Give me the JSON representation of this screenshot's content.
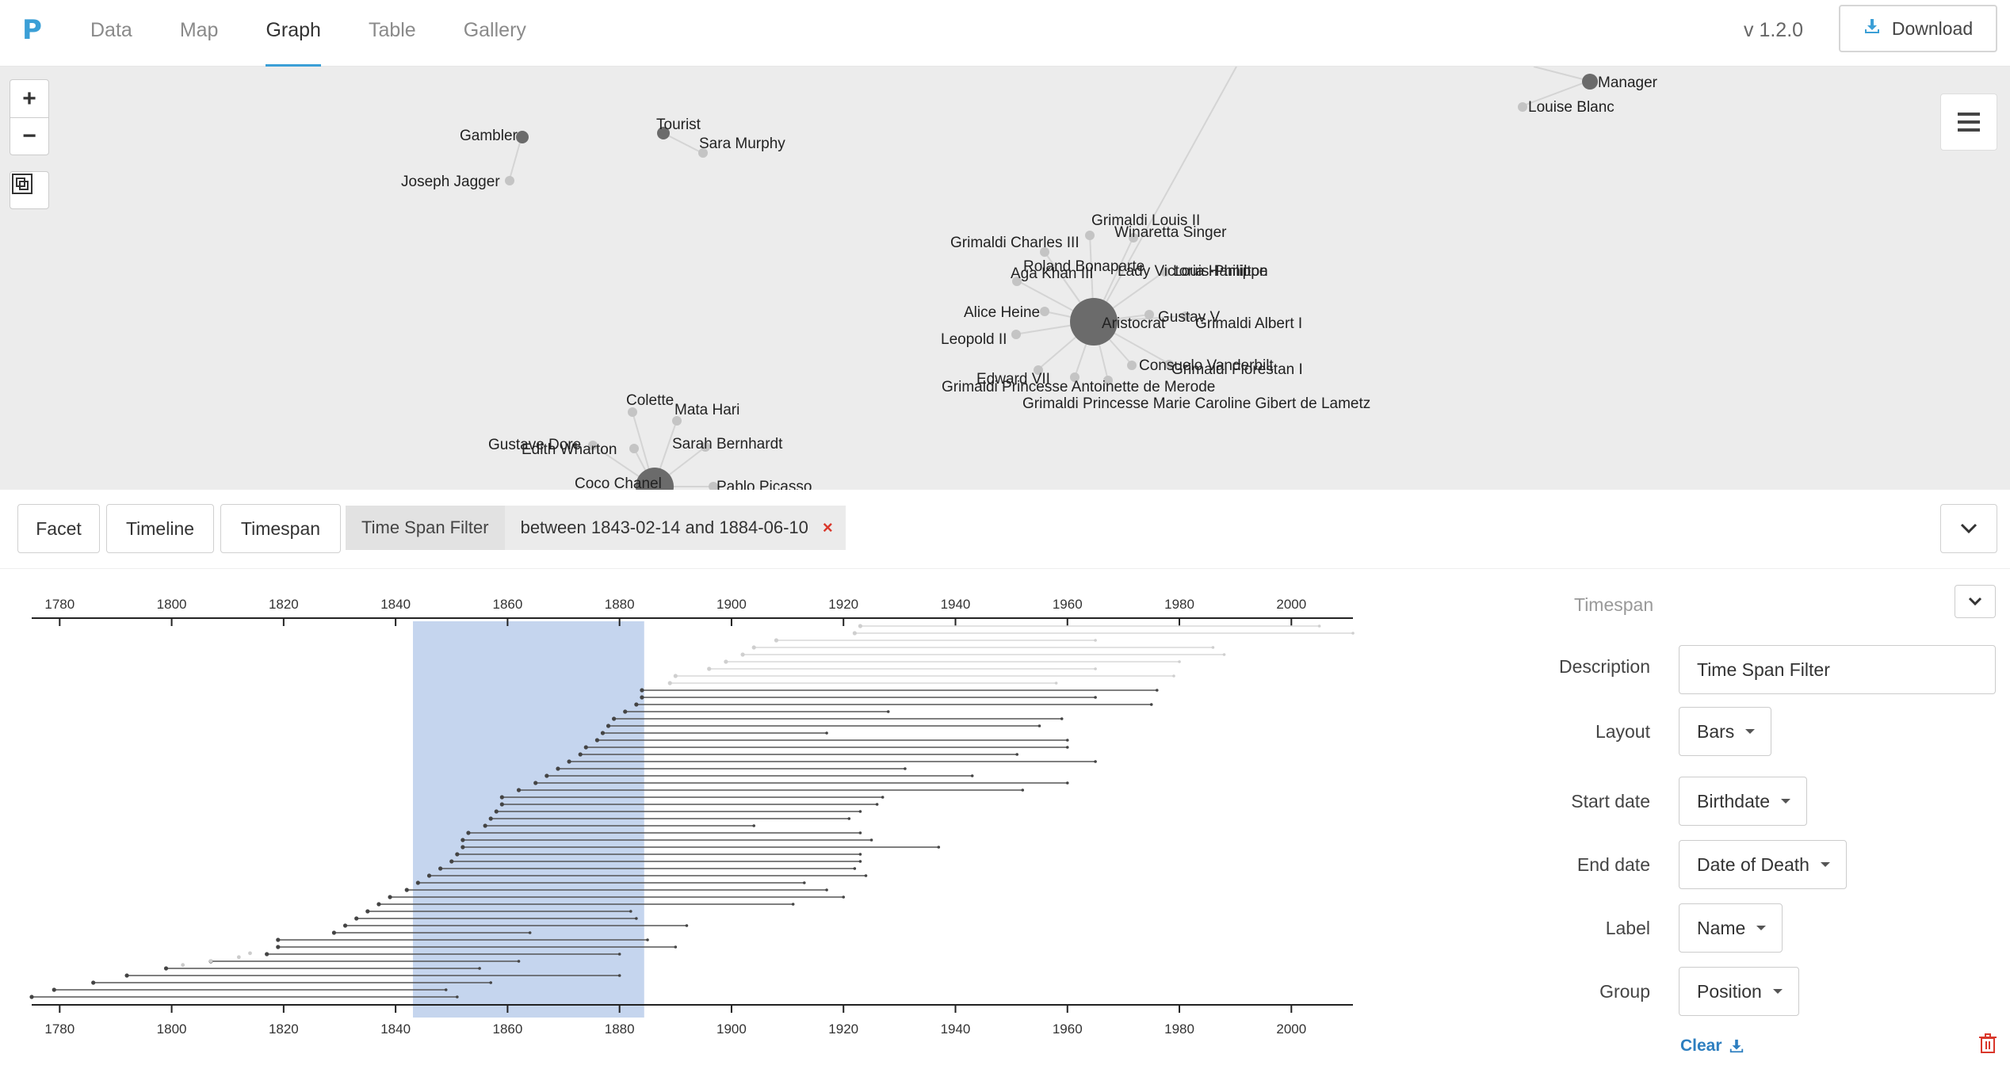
{
  "nav": {
    "logo": "P",
    "items": [
      {
        "label": "Data",
        "active": false
      },
      {
        "label": "Map",
        "active": false
      },
      {
        "label": "Graph",
        "active": true
      },
      {
        "label": "Table",
        "active": false
      },
      {
        "label": "Gallery",
        "active": false
      }
    ],
    "version": "v 1.2.0",
    "download_label": "Download"
  },
  "graph": {
    "zoom_in": "+",
    "zoom_out": "−",
    "category_nodes": [
      "Manager",
      "Tourist",
      "Gambler",
      "Aristocrat"
    ],
    "labels": {
      "manager": "Manager",
      "louise_blanc": "Louise Blanc",
      "tourist": "Tourist",
      "sara_murphy": "Sara Murphy",
      "gambler": "Gambler",
      "joseph_jagger": "Joseph Jagger",
      "grimaldi_louis_ii": "Grimaldi Louis II",
      "winaretta_singer": "Winaretta Singer",
      "grimaldi_charles_iii": "Grimaldi Charles III",
      "roland_bonaparte": "Roland Bonaparte",
      "aga_khan_iii": "Aga Khan III",
      "lady_victoria_hamilton": "Lady Victoria Hamilton",
      "louis_philippe": "Louis-Philippe",
      "alice_heine": "Alice Heine",
      "gustav_v": "Gustav V",
      "aristocrat": "Aristocrat",
      "grimaldi_albert_i": "Grimaldi Albert I",
      "leopold_ii": "Leopold II",
      "consuelo_vanderbilt": "Consuelo Vanderbilt",
      "grimaldi_florestan_i": "Grimaldi Florestan I",
      "edward_vii": "Edward VII",
      "grimaldi_princesse_antoinette": "Grimaldi Princesse Antoinette de Merode",
      "grimaldi_princesse_marie": "Grimaldi Princesse Marie Caroline Gibert de Lametz",
      "colette": "Colette",
      "mata_hari": "Mata Hari",
      "gustave_dore": "Gustave Dore",
      "edith_wharton": "Edith Wharton",
      "sarah_bernhardt": "Sarah Bernhardt",
      "coco_chanel": "Coco Chanel",
      "pablo_picasso": "Pablo Picasso"
    }
  },
  "toolbar": {
    "facet": "Facet",
    "timeline": "Timeline",
    "timespan": "Timespan",
    "filter_name": "Time Span Filter",
    "filter_value": "between 1843-02-14 and 1884-06-10",
    "filter_close": "×"
  },
  "chart_data": {
    "type": "timeline",
    "x_ticks": [
      1780,
      1800,
      1820,
      1840,
      1860,
      1880,
      1900,
      1920,
      1940,
      1960,
      1980,
      2000
    ],
    "xlim": [
      1775,
      2011
    ],
    "highlight": {
      "start": 1843.1,
      "end": 1884.4
    },
    "bars": [
      {
        "start": 1923,
        "end": 2005,
        "faded": true
      },
      {
        "start": 1922,
        "end": 2011,
        "faded": true
      },
      {
        "start": 1908,
        "end": 1965,
        "faded": true
      },
      {
        "start": 1904,
        "end": 1986,
        "faded": true
      },
      {
        "start": 1902,
        "end": 1988,
        "faded": true
      },
      {
        "start": 1899,
        "end": 1980,
        "faded": true
      },
      {
        "start": 1896,
        "end": 1965,
        "faded": true
      },
      {
        "start": 1890,
        "end": 1979,
        "faded": true
      },
      {
        "start": 1889,
        "end": 1958,
        "faded": true
      },
      {
        "start": 1884,
        "end": 1976
      },
      {
        "start": 1884,
        "end": 1965
      },
      {
        "start": 1883,
        "end": 1975
      },
      {
        "start": 1881,
        "end": 1928
      },
      {
        "start": 1879,
        "end": 1959
      },
      {
        "start": 1878,
        "end": 1955
      },
      {
        "start": 1877,
        "end": 1917
      },
      {
        "start": 1876,
        "end": 1960
      },
      {
        "start": 1874,
        "end": 1960
      },
      {
        "start": 1873,
        "end": 1951
      },
      {
        "start": 1871,
        "end": 1965
      },
      {
        "start": 1869,
        "end": 1931
      },
      {
        "start": 1867,
        "end": 1943
      },
      {
        "start": 1865,
        "end": 1960
      },
      {
        "start": 1862,
        "end": 1952
      },
      {
        "start": 1859,
        "end": 1927
      },
      {
        "start": 1859,
        "end": 1926
      },
      {
        "start": 1858,
        "end": 1923
      },
      {
        "start": 1857,
        "end": 1921
      },
      {
        "start": 1856,
        "end": 1904
      },
      {
        "start": 1853,
        "end": 1923
      },
      {
        "start": 1852,
        "end": 1925
      },
      {
        "start": 1852,
        "end": 1937
      },
      {
        "start": 1851,
        "end": 1923
      },
      {
        "start": 1850,
        "end": 1923
      },
      {
        "start": 1848,
        "end": 1922
      },
      {
        "start": 1846,
        "end": 1924
      },
      {
        "start": 1844,
        "end": 1913
      },
      {
        "start": 1842,
        "end": 1917
      },
      {
        "start": 1839,
        "end": 1920
      },
      {
        "start": 1837,
        "end": 1911
      },
      {
        "start": 1835,
        "end": 1882
      },
      {
        "start": 1833,
        "end": 1883
      },
      {
        "start": 1831,
        "end": 1892
      },
      {
        "start": 1829,
        "end": 1864
      },
      {
        "start": 1819,
        "end": 1885
      },
      {
        "start": 1819,
        "end": 1890
      },
      {
        "start": 1817,
        "end": 1880
      },
      {
        "start": 1807,
        "end": 1862
      },
      {
        "start": 1799,
        "end": 1855
      },
      {
        "start": 1792,
        "end": 1880
      },
      {
        "start": 1786,
        "end": 1857
      },
      {
        "start": 1779,
        "end": 1849
      },
      {
        "start": 1775,
        "end": 1851
      }
    ],
    "faded_points": [
      1814,
      1812,
      1807,
      1802
    ]
  },
  "settings": {
    "title": "Timespan",
    "description_label": "Description",
    "description_value": "Time Span Filter",
    "layout_label": "Layout",
    "layout_value": "Bars",
    "start_label": "Start date",
    "start_value": "Birthdate",
    "end_label": "End date",
    "end_value": "Date of Death",
    "label_label": "Label",
    "label_value": "Name",
    "group_label": "Group",
    "group_value": "Position",
    "clear_label": "Clear"
  },
  "colors": {
    "accent": "#3b9fd6",
    "highlight": "#c5d5ee",
    "node_dark": "#666666",
    "node_light": "#c4c4c4",
    "danger": "#d9372b"
  }
}
